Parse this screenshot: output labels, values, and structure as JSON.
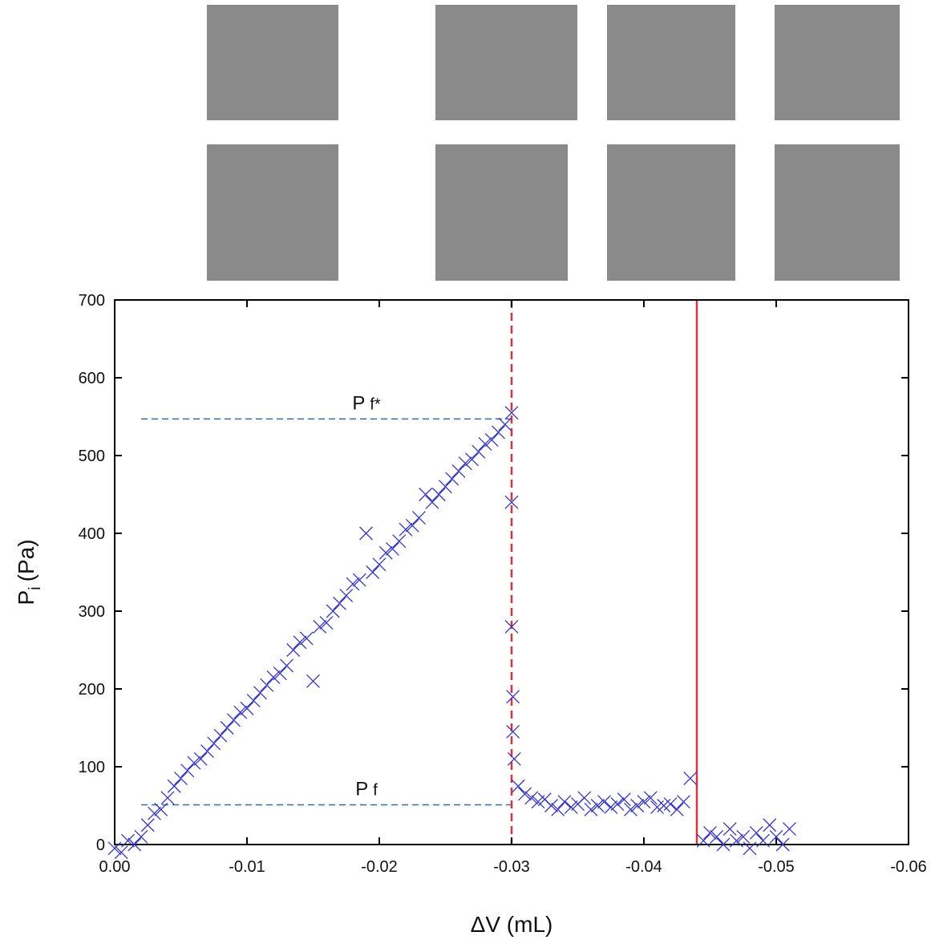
{
  "chart_data": {
    "type": "scatter",
    "x_label": "ΔV (mL)",
    "y_label": {
      "main": "P",
      "subscript": "i",
      "unit": "(Pa)"
    },
    "xlim": [
      0,
      -0.06
    ],
    "ylim": [
      0,
      700
    ],
    "xticks": [
      {
        "value": 0,
        "label": "0.00"
      },
      -0.01,
      -0.02,
      -0.03,
      -0.04,
      -0.05,
      -0.06
    ],
    "yticks": [
      0,
      100,
      200,
      300,
      400,
      500,
      600,
      700
    ],
    "marker_color": "#3535c8",
    "vlines": [
      {
        "x": -0.03,
        "style": "dashed",
        "color": "#e0303a"
      },
      {
        "x": -0.044,
        "style": "solid",
        "color": "#e0303a"
      }
    ],
    "hlines": [
      {
        "y": 547,
        "x_start": -0.002,
        "x_end": -0.03,
        "color": "#3d6b98",
        "label": "P",
        "subscript": "f*"
      },
      {
        "y": 51,
        "x_start": -0.002,
        "x_end": -0.03,
        "color": "#3d6b98",
        "label": "P",
        "subscript": "f"
      }
    ],
    "x": [
      0,
      -0.0005,
      -0.001,
      -0.0015,
      -0.002,
      -0.0025,
      -0.003,
      -0.0035,
      -0.004,
      -0.0045,
      -0.005,
      -0.0055,
      -0.006,
      -0.0065,
      -0.007,
      -0.0075,
      -0.008,
      -0.0085,
      -0.009,
      -0.0095,
      -0.01,
      -0.0105,
      -0.011,
      -0.0115,
      -0.012,
      -0.0125,
      -0.013,
      -0.0135,
      -0.014,
      -0.0145,
      -0.015,
      -0.0155,
      -0.016,
      -0.0165,
      -0.017,
      -0.0175,
      -0.018,
      -0.0185,
      -0.019,
      -0.0195,
      -0.02,
      -0.0205,
      -0.021,
      -0.0215,
      -0.022,
      -0.0225,
      -0.023,
      -0.0235,
      -0.024,
      -0.0245,
      -0.025,
      -0.0255,
      -0.026,
      -0.0265,
      -0.027,
      -0.0275,
      -0.028,
      -0.0285,
      -0.029,
      -0.0295,
      -0.03,
      -0.03,
      -0.03,
      -0.0301,
      -0.0301,
      -0.0302,
      -0.0305,
      -0.031,
      -0.0315,
      -0.032,
      -0.0325,
      -0.033,
      -0.0335,
      -0.034,
      -0.0345,
      -0.035,
      -0.0355,
      -0.036,
      -0.0365,
      -0.037,
      -0.0375,
      -0.038,
      -0.0385,
      -0.039,
      -0.0395,
      -0.04,
      -0.0405,
      -0.041,
      -0.0415,
      -0.042,
      -0.0425,
      -0.043,
      -0.0435,
      -0.0445,
      -0.045,
      -0.0455,
      -0.046,
      -0.0465,
      -0.047,
      -0.0475,
      -0.048,
      -0.0485,
      -0.049,
      -0.0495,
      -0.05,
      -0.0505,
      -0.051
    ],
    "y": [
      -5,
      -10,
      5,
      0,
      10,
      25,
      40,
      45,
      60,
      75,
      85,
      95,
      105,
      110,
      120,
      130,
      140,
      150,
      160,
      170,
      175,
      185,
      195,
      205,
      215,
      220,
      230,
      250,
      260,
      265,
      210,
      280,
      285,
      300,
      310,
      320,
      335,
      340,
      400,
      350,
      360,
      375,
      380,
      390,
      405,
      410,
      420,
      450,
      440,
      450,
      460,
      470,
      480,
      490,
      495,
      505,
      515,
      520,
      530,
      540,
      555,
      440,
      280,
      190,
      145,
      110,
      75,
      65,
      60,
      55,
      58,
      50,
      45,
      55,
      48,
      52,
      60,
      45,
      50,
      55,
      48,
      52,
      58,
      45,
      50,
      55,
      60,
      48,
      50,
      52,
      45,
      55,
      85,
      5,
      15,
      10,
      0,
      20,
      5,
      10,
      -5,
      15,
      5,
      25,
      10,
      0,
      20
    ]
  }
}
